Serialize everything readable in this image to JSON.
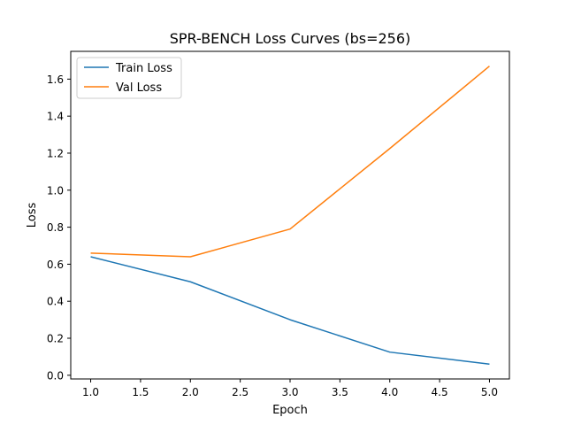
{
  "chart_data": {
    "type": "line",
    "title": "SPR-BENCH Loss Curves (bs=256)",
    "xlabel": "Epoch",
    "ylabel": "Loss",
    "x": [
      1,
      2,
      3,
      4,
      5
    ],
    "xlim": [
      0.8,
      5.2
    ],
    "ylim": [
      -0.02,
      1.75
    ],
    "xticks": [
      1.0,
      1.5,
      2.0,
      2.5,
      3.0,
      3.5,
      4.0,
      4.5,
      5.0
    ],
    "xtick_labels": [
      "1.0",
      "1.5",
      "2.0",
      "2.5",
      "3.0",
      "3.5",
      "4.0",
      "4.5",
      "5.0"
    ],
    "yticks": [
      0.0,
      0.2,
      0.4,
      0.6,
      0.8,
      1.0,
      1.2,
      1.4,
      1.6
    ],
    "ytick_labels": [
      "0.0",
      "0.2",
      "0.4",
      "0.6",
      "0.8",
      "1.0",
      "1.2",
      "1.4",
      "1.6"
    ],
    "grid": false,
    "legend_position": "upper-left",
    "series": [
      {
        "name": "Train Loss",
        "values": [
          0.64,
          0.505,
          0.3,
          0.125,
          0.06
        ],
        "color": "#1f77b4"
      },
      {
        "name": "Val Loss",
        "values": [
          0.66,
          0.64,
          0.79,
          1.225,
          1.67
        ],
        "color": "#ff7f0e"
      }
    ]
  }
}
